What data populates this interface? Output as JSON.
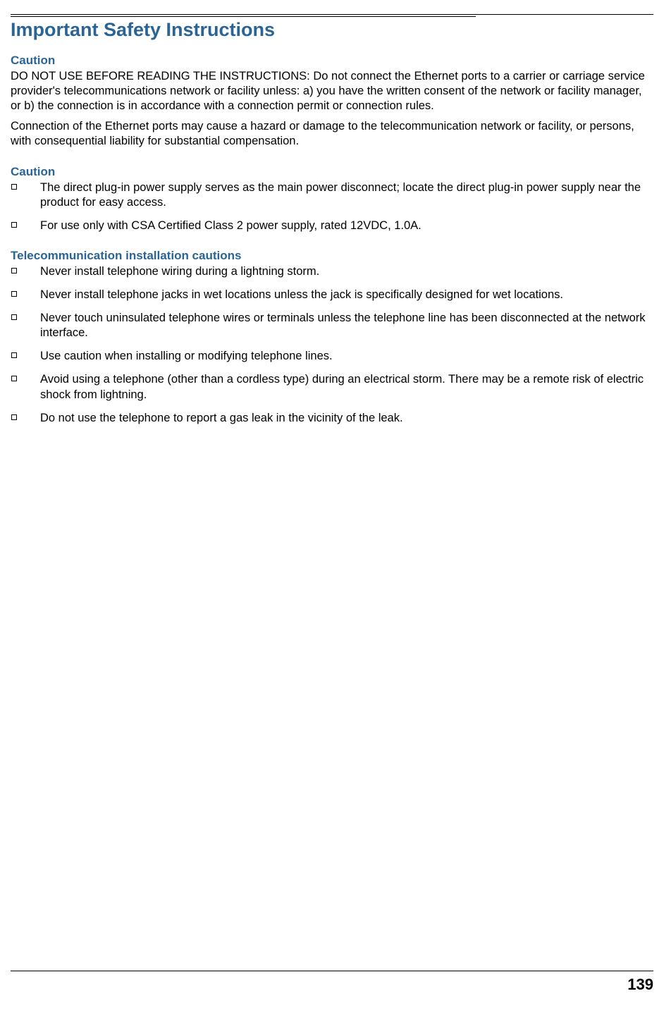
{
  "title": "Important Safety Instructions",
  "section1": {
    "heading": "Caution",
    "para1": "DO NOT USE BEFORE READING THE INSTRUCTIONS: Do not connect the Ethernet ports to a carrier or carriage service provider's telecommunications network or facility unless: a) you have the written consent of the network or facility manager, or b) the connection is in accordance with a connection permit or connection rules.",
    "para2": "Connection of the Ethernet ports may cause a hazard or damage to the telecommunication network or facility, or persons, with consequential liability for substantial compensation."
  },
  "section2": {
    "heading": "Caution",
    "items": [
      "The direct plug-in power supply serves as the main power disconnect; locate the direct plug-in power supply near the product for easy access.",
      "For use only with CSA Certified Class 2 power supply, rated 12VDC, 1.0A."
    ]
  },
  "section3": {
    "heading": "Telecommunication installation cautions",
    "items": [
      "Never install telephone wiring during a lightning storm.",
      "Never install telephone jacks in wet locations unless the jack is specifically designed for wet locations.",
      "Never touch uninsulated telephone wires or terminals unless the telephone line has been disconnected at the network interface.",
      "Use caution when installing or modifying telephone lines.",
      "Avoid using a telephone (other than a cordless type) during an electrical storm. There may be a remote risk of electric shock from lightning.",
      "Do not use the telephone to report a gas leak in the vicinity of the leak."
    ]
  },
  "pageNumber": "139"
}
